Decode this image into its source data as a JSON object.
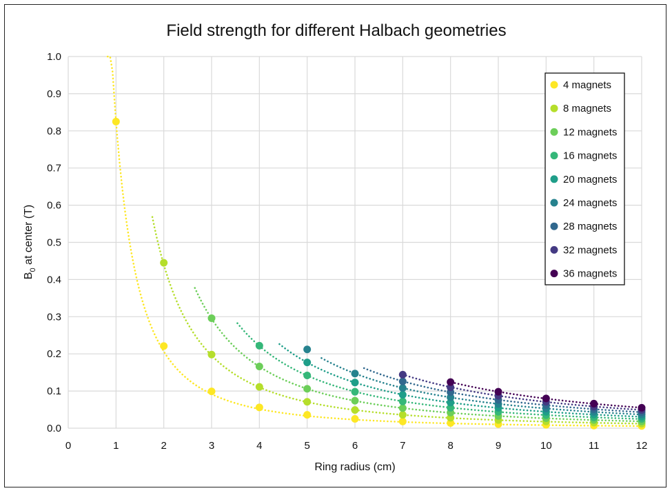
{
  "chart_data": {
    "type": "scatter",
    "title": "Field strength for different Halbach geometries",
    "xlabel": "Ring radius (cm)",
    "ylabel_main": "B",
    "ylabel_sub": "0",
    "ylabel_rest": " at center (T)",
    "xlim": [
      0,
      12
    ],
    "ylim": [
      0,
      1.0
    ],
    "x_ticks": [
      "0",
      "1",
      "2",
      "3",
      "4",
      "5",
      "6",
      "7",
      "8",
      "9",
      "10",
      "11",
      "12"
    ],
    "y_ticks": [
      "0.0",
      "0.1",
      "0.2",
      "0.3",
      "0.4",
      "0.5",
      "0.6",
      "0.7",
      "0.8",
      "0.9",
      "1.0"
    ],
    "grid": true,
    "legend_position": "top-right",
    "trendline": "power, dotted",
    "series": [
      {
        "name": "4 magnets",
        "color": "#FDE725",
        "k": 0.825,
        "x": [
          1,
          2,
          3,
          4,
          5,
          6,
          7,
          8,
          9,
          10,
          11,
          12
        ],
        "y": [
          0.825,
          0.221,
          0.099,
          0.056,
          0.036,
          0.025,
          0.018,
          0.014,
          0.011,
          0.009,
          0.007,
          0.006
        ]
      },
      {
        "name": "8 magnets",
        "color": "#B5DE2B",
        "k": 1.76,
        "x": [
          2,
          3,
          4,
          5,
          6,
          7,
          8,
          9,
          10,
          11,
          12
        ],
        "y": [
          0.445,
          0.198,
          0.111,
          0.071,
          0.049,
          0.036,
          0.028,
          0.022,
          0.018,
          0.015,
          0.012
        ]
      },
      {
        "name": "12 magnets",
        "color": "#6CCE59",
        "k": 2.65,
        "x": [
          3,
          4,
          5,
          6,
          7,
          8,
          9,
          10,
          11,
          12
        ],
        "y": [
          0.296,
          0.166,
          0.106,
          0.074,
          0.054,
          0.042,
          0.033,
          0.027,
          0.022,
          0.018
        ]
      },
      {
        "name": "16 magnets",
        "color": "#35B779",
        "k": 3.54,
        "x": [
          4,
          5,
          6,
          7,
          8,
          9,
          10,
          11,
          12
        ],
        "y": [
          0.222,
          0.142,
          0.098,
          0.072,
          0.055,
          0.044,
          0.035,
          0.029,
          0.025
        ]
      },
      {
        "name": "20 magnets",
        "color": "#1F9E89",
        "k": 4.42,
        "x": [
          5,
          6,
          7,
          8,
          9,
          10,
          11,
          12
        ],
        "y": [
          0.177,
          0.123,
          0.09,
          0.069,
          0.055,
          0.044,
          0.037,
          0.031
        ]
      },
      {
        "name": "24 magnets",
        "color": "#26828E",
        "k": 5.3,
        "x": [
          5,
          6,
          7,
          8,
          9,
          10,
          11,
          12
        ],
        "y": [
          0.212,
          0.147,
          0.108,
          0.083,
          0.065,
          0.053,
          0.044,
          0.037
        ]
      },
      {
        "name": "28 magnets",
        "color": "#31688E",
        "k": 6.19,
        "x": [
          7,
          8,
          9,
          10,
          11,
          12
        ],
        "y": [
          0.126,
          0.097,
          0.076,
          0.062,
          0.051,
          0.043
        ]
      },
      {
        "name": "32 magnets",
        "color": "#443A83",
        "k": 7.07,
        "x": [
          7,
          8,
          9,
          10,
          11,
          12
        ],
        "y": [
          0.144,
          0.11,
          0.087,
          0.071,
          0.058,
          0.049
        ]
      },
      {
        "name": "36 magnets",
        "color": "#440154",
        "k": 7.95,
        "x": [
          8,
          9,
          10,
          11,
          12
        ],
        "y": [
          0.124,
          0.098,
          0.08,
          0.066,
          0.055
        ]
      }
    ]
  }
}
